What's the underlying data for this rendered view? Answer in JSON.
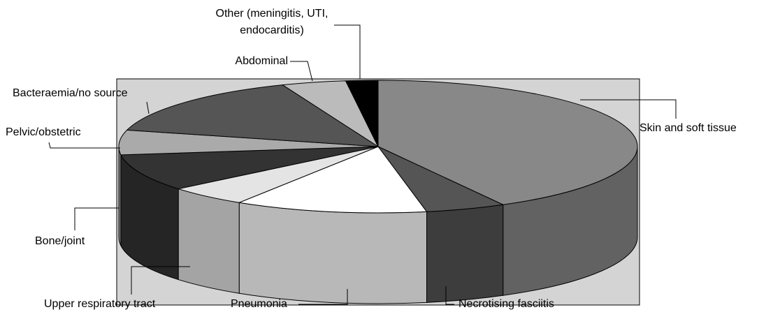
{
  "chart_data": {
    "type": "pie3d",
    "categories": [
      "Skin and soft tissue",
      "Necrotising fasciitis",
      "Pneumonia",
      "Upper respiratory tract",
      "Bone/joint",
      "Pelvic/obstetric",
      "Bacteraemia/no source",
      "Abdominal",
      "Other (meningitis, UTI, endocarditis)"
    ],
    "values": [
      42,
      5,
      12,
      5,
      9,
      6,
      15,
      4,
      2
    ],
    "colors": [
      "#888888",
      "#555555",
      "#ffffff",
      "#e4e4e4",
      "#333333",
      "#aaaaaa",
      "#555555",
      "#bbbbbb",
      "#000000"
    ]
  }
}
